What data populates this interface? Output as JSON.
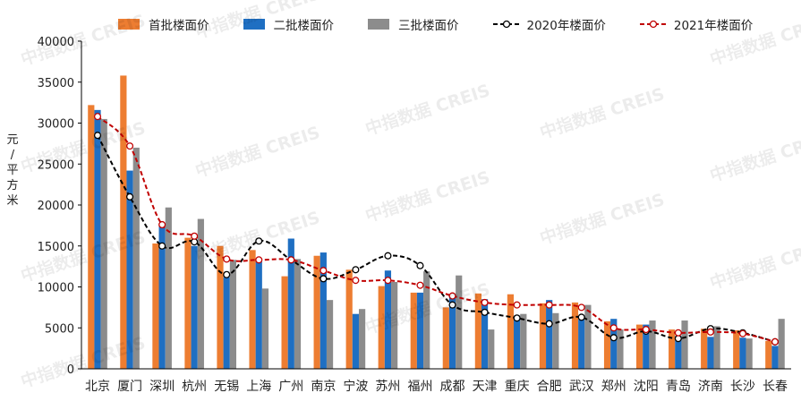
{
  "watermark": "中指数据 CREIS",
  "colors": {
    "first": "#ED7D31",
    "second": "#1F6FC2",
    "third": "#8C8C8C",
    "y2020": "#000000",
    "y2021": "#C00000"
  },
  "chart_data": {
    "type": "bar",
    "title": "",
    "ylabel": "元/平方米",
    "ylim": [
      0,
      40000
    ],
    "yticks": [
      0,
      5000,
      10000,
      15000,
      20000,
      25000,
      30000,
      35000,
      40000
    ],
    "categories": [
      "北京",
      "厦门",
      "深圳",
      "杭州",
      "无锡",
      "上海",
      "广州",
      "南京",
      "宁波",
      "苏州",
      "福州",
      "成都",
      "天津",
      "重庆",
      "合肥",
      "武汉",
      "郑州",
      "沈阳",
      "青岛",
      "济南",
      "长沙",
      "长春"
    ],
    "series": [
      {
        "name": "首批楼面价",
        "kind": "bar",
        "color": "#ED7D31",
        "values": [
          32200,
          35800,
          15300,
          16000,
          15000,
          14500,
          11300,
          13800,
          12100,
          10100,
          9300,
          7500,
          9200,
          9100,
          8000,
          8100,
          5800,
          5400,
          4800,
          4900,
          4700,
          3400
        ]
      },
      {
        "name": "二批楼面价",
        "kind": "bar",
        "color": "#1F6FC2",
        "values": [
          31600,
          24200,
          17500,
          15000,
          11200,
          13200,
          15900,
          14200,
          6700,
          12000,
          9300,
          8700,
          8500,
          6500,
          8400,
          6000,
          6100,
          5400,
          4000,
          3900,
          3800,
          2800
        ]
      },
      {
        "name": "三批楼面价",
        "kind": "bar",
        "color": "#8C8C8C",
        "values": [
          30500,
          27000,
          19700,
          18300,
          13300,
          9800,
          13400,
          8400,
          7300,
          10600,
          11900,
          11400,
          4800,
          6700,
          6800,
          7800,
          4800,
          5900,
          5900,
          5200,
          3700,
          6100
        ]
      },
      {
        "name": "2020年楼面价",
        "kind": "line",
        "color": "#000000",
        "values": [
          28500,
          21000,
          15000,
          15500,
          11500,
          15600,
          13300,
          11000,
          12100,
          13800,
          12600,
          7800,
          6900,
          6200,
          5500,
          6300,
          3800,
          4600,
          3700,
          4900,
          4400,
          3300
        ]
      },
      {
        "name": "2021年楼面价",
        "kind": "line",
        "color": "#C00000",
        "values": [
          30800,
          27200,
          17600,
          16200,
          13400,
          13300,
          13300,
          12000,
          10800,
          10800,
          10200,
          8900,
          8100,
          7800,
          7800,
          7500,
          5000,
          4800,
          4400,
          4500,
          4300,
          3300
        ]
      }
    ]
  }
}
